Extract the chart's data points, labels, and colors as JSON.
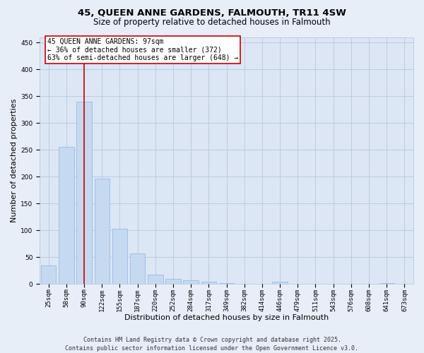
{
  "title_line1": "45, QUEEN ANNE GARDENS, FALMOUTH, TR11 4SW",
  "title_line2": "Size of property relative to detached houses in Falmouth",
  "xlabel": "Distribution of detached houses by size in Falmouth",
  "ylabel": "Number of detached properties",
  "bar_color": "#c5d9f1",
  "bar_edge_color": "#8db4e2",
  "categories": [
    "25sqm",
    "58sqm",
    "90sqm",
    "122sqm",
    "155sqm",
    "187sqm",
    "220sqm",
    "252sqm",
    "284sqm",
    "317sqm",
    "349sqm",
    "382sqm",
    "414sqm",
    "446sqm",
    "479sqm",
    "511sqm",
    "543sqm",
    "576sqm",
    "608sqm",
    "641sqm",
    "673sqm"
  ],
  "values": [
    35,
    255,
    340,
    197,
    103,
    57,
    18,
    10,
    7,
    4,
    2,
    1,
    0,
    4,
    0,
    0,
    0,
    0,
    0,
    2,
    0
  ],
  "ylim": [
    0,
    460
  ],
  "yticks": [
    0,
    50,
    100,
    150,
    200,
    250,
    300,
    350,
    400,
    450
  ],
  "vline_x": 2,
  "vline_color": "#cc0000",
  "annotation_line1": "45 QUEEN ANNE GARDENS: 97sqm",
  "annotation_line2": "← 36% of detached houses are smaller (372)",
  "annotation_line3": "63% of semi-detached houses are larger (648) →",
  "footer_line1": "Contains HM Land Registry data © Crown copyright and database right 2025.",
  "footer_line2": "Contains public sector information licensed under the Open Government Licence v3.0.",
  "bg_color": "#e8eef8",
  "plot_bg_color": "#dce6f4",
  "grid_color": "#b8c8e0",
  "title_fontsize": 9.5,
  "subtitle_fontsize": 8.5,
  "axis_label_fontsize": 8,
  "tick_fontsize": 6.5,
  "annotation_fontsize": 7,
  "footer_fontsize": 6
}
